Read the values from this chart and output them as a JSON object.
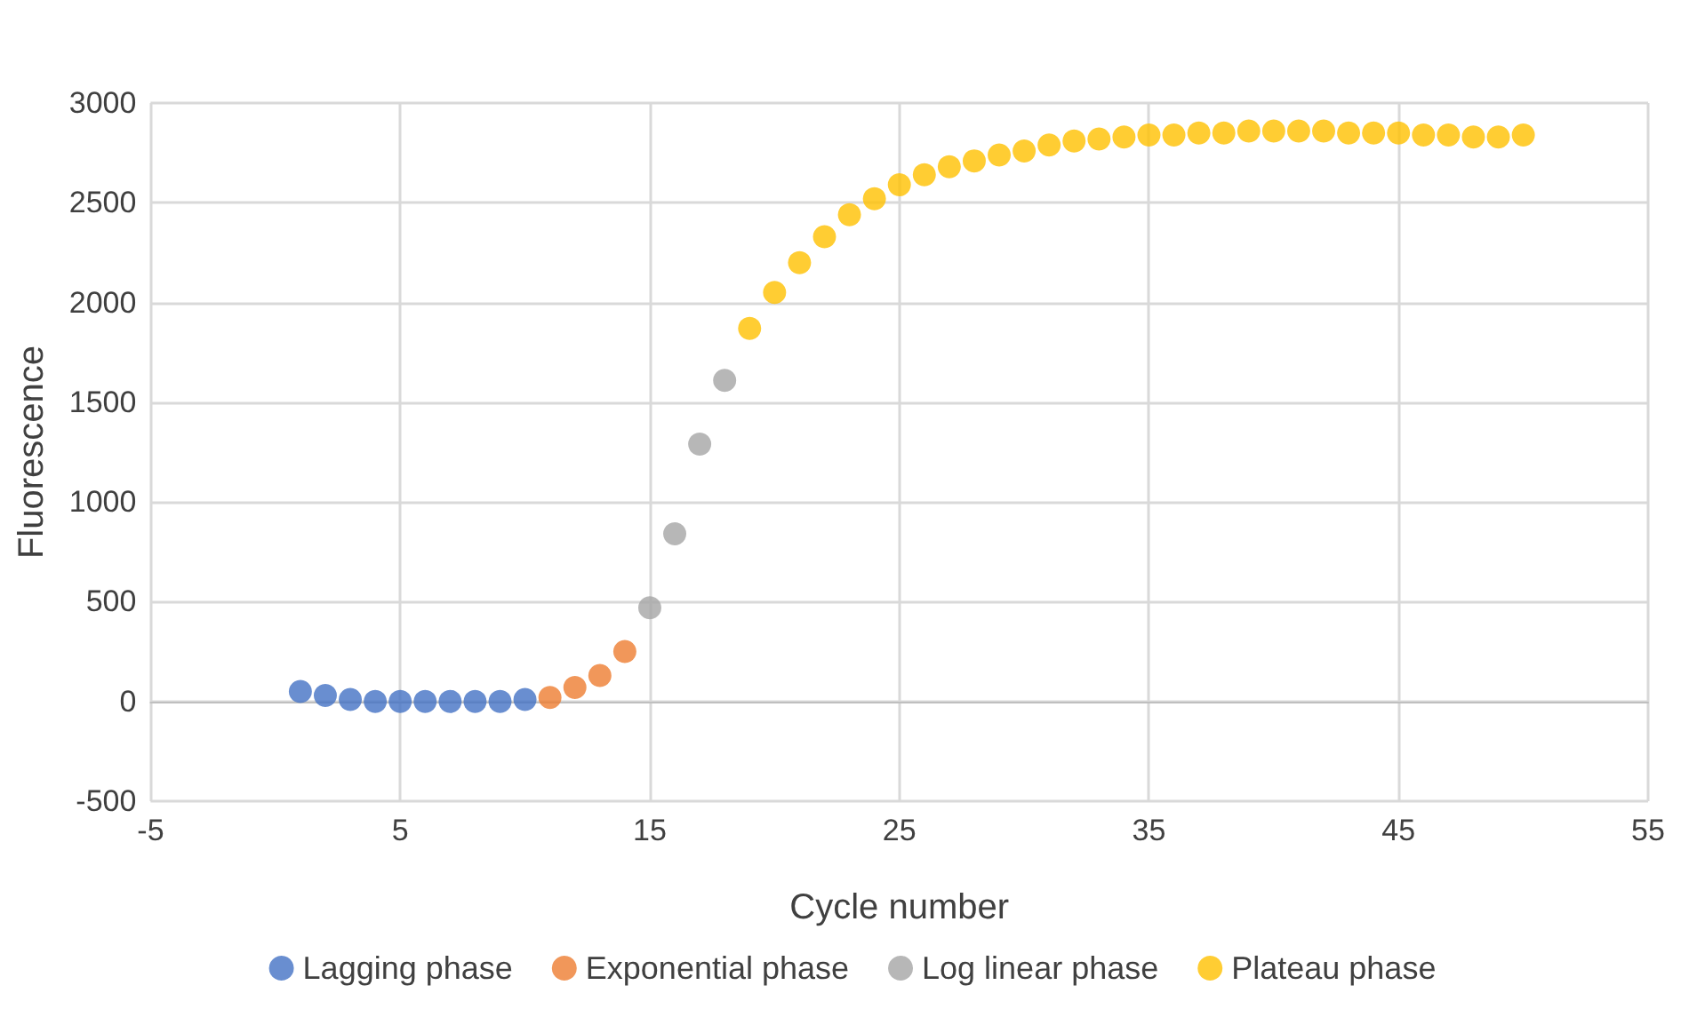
{
  "chart_data": {
    "type": "scatter",
    "xlabel": "Cycle number",
    "ylabel": "Fluorescence",
    "xlim": [
      -5,
      55
    ],
    "xticks": [
      -5,
      5,
      15,
      25,
      35,
      45,
      55
    ],
    "ylim": [
      -500,
      3000
    ],
    "yticks": [
      -500,
      0,
      500,
      1000,
      1500,
      2000,
      2500,
      3000
    ],
    "grid": true,
    "legend": "bottom",
    "marker": "circle",
    "series": [
      {
        "name": "Lagging phase",
        "color": "#4472c4",
        "x": [
          1,
          2,
          3,
          4,
          5,
          6,
          7,
          8,
          9,
          10
        ],
        "values": [
          50,
          30,
          10,
          0,
          0,
          0,
          0,
          0,
          0,
          10
        ]
      },
      {
        "name": "Exponential phase",
        "color": "#ed7d31",
        "x": [
          11,
          12,
          13,
          14
        ],
        "values": [
          20,
          70,
          130,
          250
        ]
      },
      {
        "name": "Log linear phase",
        "color": "#a5a5a5",
        "x": [
          15,
          16,
          17,
          18
        ],
        "values": [
          470,
          840,
          1290,
          1610
        ]
      },
      {
        "name": "Plateau phase",
        "color": "#ffc000",
        "x": [
          19,
          20,
          21,
          22,
          23,
          24,
          25,
          26,
          27,
          28,
          29,
          30,
          31,
          32,
          33,
          34,
          35,
          36,
          37,
          38,
          39,
          40,
          41,
          42,
          43,
          44,
          45,
          46,
          47,
          48,
          49,
          50
        ],
        "values": [
          1870,
          2050,
          2200,
          2330,
          2440,
          2520,
          2590,
          2640,
          2680,
          2710,
          2740,
          2760,
          2790,
          2810,
          2820,
          2830,
          2840,
          2840,
          2850,
          2850,
          2860,
          2860,
          2860,
          2860,
          2850,
          2850,
          2850,
          2840,
          2840,
          2830,
          2830,
          2840
        ]
      }
    ]
  }
}
